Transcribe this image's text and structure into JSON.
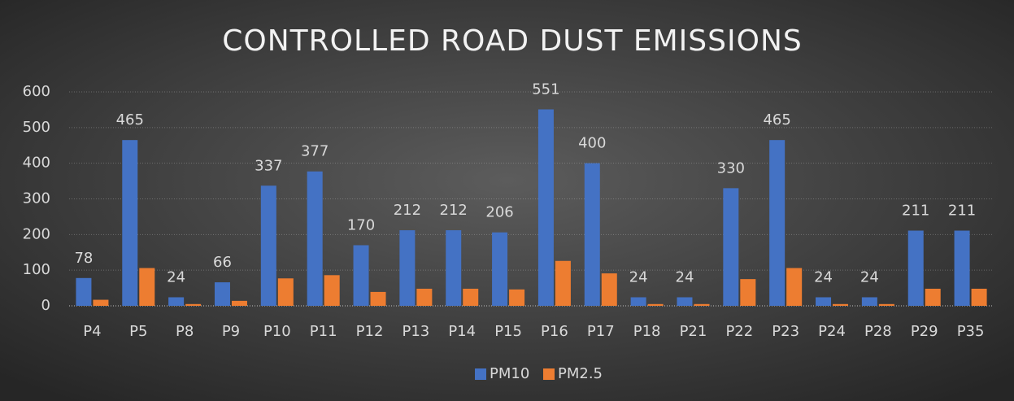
{
  "chart_data": {
    "type": "bar",
    "title": "CONTROLLED ROAD DUST EMISSIONS",
    "categories": [
      "P4",
      "P5",
      "P8",
      "P9",
      "P10",
      "P11",
      "P12",
      "P13",
      "P14",
      "P15",
      "P16",
      "P17",
      "P18",
      "P21",
      "P22",
      "P23",
      "P24",
      "P28",
      "P29",
      "P35"
    ],
    "series": [
      {
        "name": "PM10",
        "color": "#4472c4",
        "values": [
          78,
          465,
          24,
          66,
          337,
          377,
          170,
          212,
          212,
          206,
          551,
          400,
          24,
          24,
          330,
          465,
          24,
          24,
          211,
          211
        ]
      },
      {
        "name": "PM2.5",
        "color": "#ed7d31",
        "values": [
          17,
          106,
          5,
          14,
          77,
          86,
          39,
          48,
          48,
          46,
          126,
          91,
          5,
          5,
          75,
          106,
          5,
          5,
          48,
          48
        ]
      }
    ],
    "ylim": [
      0,
      600
    ],
    "yticks": [
      0,
      100,
      200,
      300,
      400,
      500,
      600
    ],
    "grid": true,
    "legend": "bottom"
  }
}
